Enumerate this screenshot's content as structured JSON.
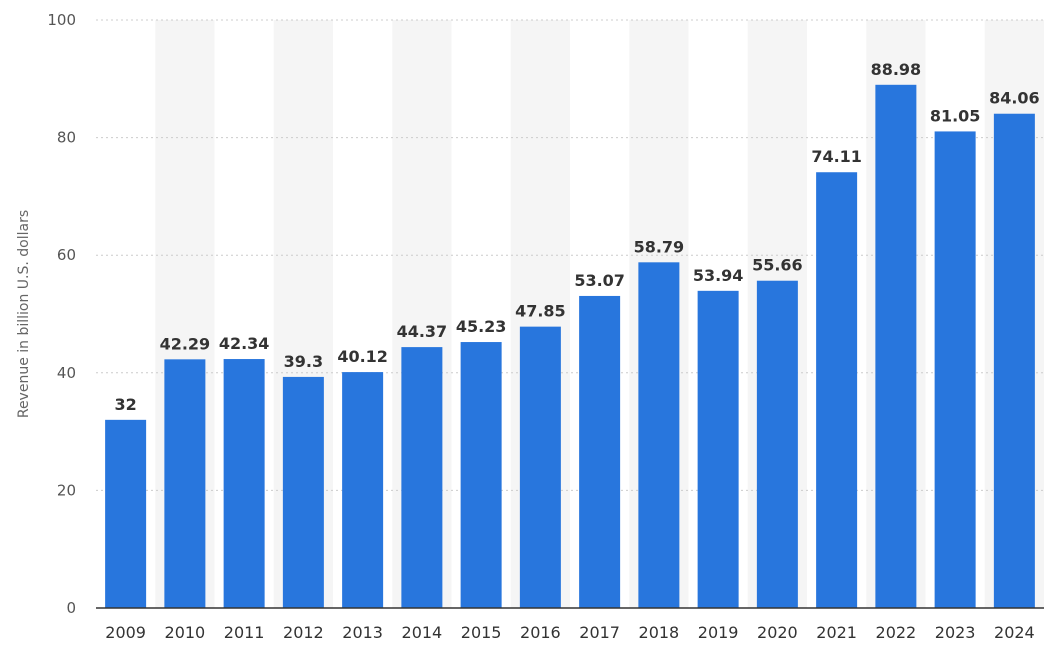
{
  "chart_data": {
    "type": "bar",
    "title": "",
    "xlabel": "",
    "ylabel": "Revenue in billion U.S. dollars",
    "ylim": [
      0,
      100
    ],
    "yticks": [
      0,
      20,
      40,
      60,
      80,
      100
    ],
    "grid": true,
    "categories": [
      "2009",
      "2010",
      "2011",
      "2012",
      "2013",
      "2014",
      "2015",
      "2016",
      "2017",
      "2018",
      "2019",
      "2020",
      "2021",
      "2022",
      "2023",
      "2024"
    ],
    "values": [
      32,
      42.29,
      42.34,
      39.3,
      40.12,
      44.37,
      45.23,
      47.85,
      53.07,
      58.79,
      53.94,
      55.66,
      74.11,
      88.98,
      81.05,
      84.06
    ],
    "value_labels": [
      "32",
      "42.29",
      "42.34",
      "39.3",
      "40.12",
      "44.37",
      "45.23",
      "47.85",
      "53.07",
      "58.79",
      "53.94",
      "55.66",
      "74.11",
      "88.98",
      "81.05",
      "84.06"
    ],
    "colors": {
      "bar": "#2876dd",
      "band": "#f5f5f5",
      "grid": "#cccccc",
      "axis": "#333333"
    }
  }
}
